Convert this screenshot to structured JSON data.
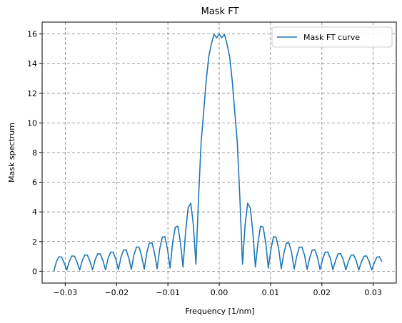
{
  "chart_data": {
    "type": "line",
    "title": "Mask FT",
    "xlabel": "Frequency [1/nm]",
    "ylabel": "Mask spectrum",
    "xlim": [
      -0.0345,
      0.0345
    ],
    "ylim": [
      -0.8,
      16.8
    ],
    "xticks": [
      -0.03,
      -0.02,
      -0.01,
      0.0,
      0.01,
      0.02,
      0.03
    ],
    "xtick_labels": [
      "−0.03",
      "−0.02",
      "−0.01",
      "0.00",
      "0.01",
      "0.02",
      "0.03"
    ],
    "yticks": [
      0,
      2,
      4,
      6,
      8,
      10,
      12,
      14,
      16
    ],
    "ytick_labels": [
      "0",
      "2",
      "4",
      "6",
      "8",
      "10",
      "12",
      "14",
      "16"
    ],
    "grid": true,
    "legend_position": "top-right",
    "series_color": "#1f77b4",
    "grid_color": "#808080",
    "series": [
      {
        "name": "Mask FT curve",
        "x": [
          -0.03222,
          -0.03171,
          -0.03121,
          -0.03071,
          -0.03021,
          -0.0297,
          -0.0292,
          -0.0287,
          -0.02819,
          -0.02769,
          -0.02719,
          -0.02668,
          -0.02618,
          -0.02568,
          -0.02517,
          -0.02467,
          -0.02417,
          -0.02366,
          -0.02316,
          -0.02266,
          -0.02215,
          -0.02165,
          -0.02115,
          -0.02064,
          -0.02014,
          -0.01964,
          -0.01913,
          -0.01863,
          -0.01813,
          -0.01762,
          -0.01712,
          -0.01662,
          -0.01611,
          -0.01561,
          -0.01511,
          -0.0146,
          -0.0141,
          -0.0136,
          -0.01309,
          -0.01259,
          -0.01209,
          -0.01158,
          -0.01108,
          -0.01058,
          -0.01007,
          -0.00957,
          -0.00907,
          -0.00856,
          -0.00806,
          -0.00756,
          -0.00705,
          -0.00655,
          -0.00605,
          -0.00554,
          -0.00504,
          -0.00454,
          -0.00403,
          -0.00353,
          -0.00303,
          -0.00252,
          -0.00202,
          -0.00151,
          -0.00101,
          -0.0005,
          0.0,
          0.0005,
          0.00101,
          0.00151,
          0.00202,
          0.00252,
          0.00303,
          0.00353,
          0.00403,
          0.00454,
          0.00504,
          0.00554,
          0.00605,
          0.00655,
          0.00705,
          0.00756,
          0.00806,
          0.00856,
          0.00907,
          0.00957,
          0.01007,
          0.01058,
          0.01108,
          0.01158,
          0.01209,
          0.01259,
          0.01309,
          0.0136,
          0.0141,
          0.0146,
          0.01511,
          0.01561,
          0.01611,
          0.01662,
          0.01712,
          0.01762,
          0.01813,
          0.01863,
          0.01913,
          0.01964,
          0.02014,
          0.02064,
          0.02115,
          0.02165,
          0.02215,
          0.02266,
          0.02316,
          0.02366,
          0.02417,
          0.02467,
          0.02517,
          0.02568,
          0.02618,
          0.02668,
          0.02719,
          0.02769,
          0.02819,
          0.0287,
          0.0292,
          0.0297,
          0.03021,
          0.03071,
          0.03121,
          0.03171
        ],
        "y": [
          0.0,
          0.65,
          0.98,
          0.95,
          0.56,
          0.08,
          0.67,
          1.03,
          1.01,
          0.61,
          0.08,
          0.72,
          1.1,
          1.08,
          0.66,
          0.09,
          0.78,
          1.18,
          1.17,
          0.72,
          0.1,
          0.86,
          1.29,
          1.28,
          0.8,
          0.11,
          0.96,
          1.44,
          1.43,
          0.89,
          0.12,
          1.09,
          1.63,
          1.62,
          1.01,
          0.14,
          1.26,
          1.9,
          1.91,
          1.2,
          0.17,
          1.52,
          2.3,
          2.33,
          1.47,
          0.21,
          1.92,
          2.97,
          3.04,
          1.96,
          0.28,
          2.67,
          4.28,
          4.59,
          3.13,
          0.47,
          4.9,
          8.65,
          10.75,
          12.91,
          14.5,
          15.34,
          15.98,
          15.74,
          16.0,
          15.74,
          15.98,
          15.34,
          14.5,
          12.91,
          10.75,
          8.65,
          4.9,
          0.47,
          3.13,
          4.59,
          4.28,
          2.67,
          0.28,
          1.96,
          3.04,
          2.97,
          1.92,
          0.21,
          1.47,
          2.33,
          2.3,
          1.52,
          0.17,
          1.2,
          1.91,
          1.9,
          1.26,
          0.14,
          1.01,
          1.62,
          1.63,
          1.09,
          0.12,
          0.89,
          1.43,
          1.44,
          0.96,
          0.11,
          0.8,
          1.28,
          1.29,
          0.86,
          0.1,
          0.72,
          1.17,
          1.18,
          0.78,
          0.09,
          0.66,
          1.08,
          1.1,
          0.72,
          0.08,
          0.61,
          1.01,
          1.03,
          0.67,
          0.08,
          0.56,
          0.95,
          0.98,
          0.65
        ]
      }
    ]
  }
}
